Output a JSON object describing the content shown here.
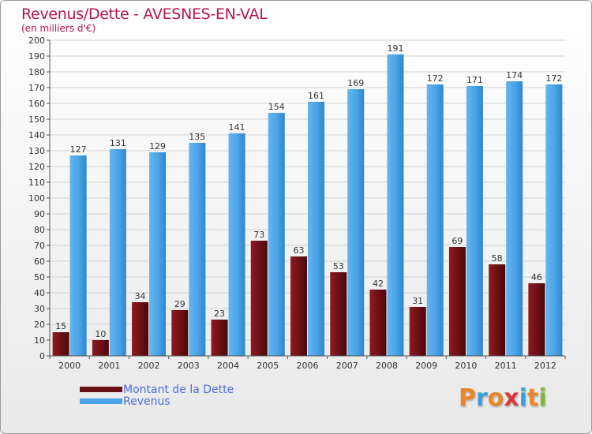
{
  "header": {
    "title": "Revenus/Dette - AVESNES-EN-VAL",
    "subtitle": "(en milliers d'€)"
  },
  "colors": {
    "dette": "#6b1015",
    "dette_light": "#9a2025",
    "revenus": "#4aa3e6",
    "revenus_light": "#6fbdf2",
    "title": "#b5164e",
    "legend_text": "#4a6fd8"
  },
  "chart_data": {
    "type": "bar",
    "title": "Revenus/Dette - AVESNES-EN-VAL",
    "ylabel": "(en milliers d'€)",
    "xlabel": "",
    "ylim": [
      0,
      200
    ],
    "yticks": [
      0,
      10,
      20,
      30,
      40,
      50,
      60,
      70,
      80,
      90,
      100,
      110,
      120,
      130,
      140,
      150,
      160,
      170,
      180,
      190,
      200
    ],
    "grid": true,
    "legend_position": "bottom-left",
    "categories": [
      "2000",
      "2001",
      "2002",
      "2003",
      "2004",
      "2005",
      "2006",
      "2007",
      "2008",
      "2009",
      "2010",
      "2011",
      "2012"
    ],
    "series": [
      {
        "name": "Montant de la Dette",
        "values": [
          15,
          10,
          34,
          29,
          23,
          73,
          63,
          53,
          42,
          31,
          69,
          58,
          46
        ]
      },
      {
        "name": "Revenus",
        "values": [
          127,
          131,
          129,
          135,
          141,
          154,
          161,
          169,
          191,
          172,
          171,
          174,
          172
        ]
      }
    ]
  },
  "logo": {
    "letters": [
      "P",
      "r",
      "o",
      "x",
      "i",
      "t",
      "i"
    ],
    "colors": [
      "#e8862a",
      "#3a9fd8",
      "#e8862a",
      "#d83a3a",
      "#3a9fd8",
      "#e8862a",
      "#7ab83a"
    ]
  }
}
